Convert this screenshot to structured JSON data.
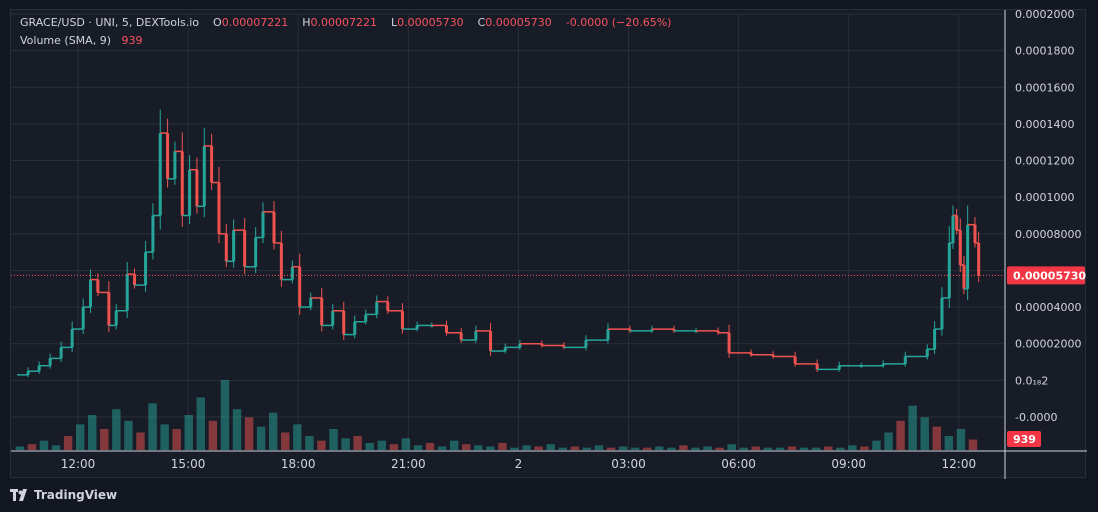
{
  "header": {
    "symbol": "GRACE/USD · UNI, 5, DEXTools.io",
    "o_label": "O",
    "o_value": "0.00007221",
    "h_label": "H",
    "h_value": "0.00007221",
    "l_label": "L",
    "l_value": "0.00005730",
    "c_label": "C",
    "c_value": "0.00005730",
    "change": "-0.0000 (−20.65%)",
    "volume_label": "Volume (SMA, 9)",
    "volume_value": "939"
  },
  "footer": {
    "brand": "TradingView"
  },
  "colors": {
    "up": "#26a69a",
    "down": "#ef5350",
    "background": "#181c27",
    "grid": "#2a2e39",
    "text": "#d1d4dc",
    "price_line": "#f7525f"
  },
  "chart_data": {
    "type": "candlestick",
    "price_tick_labels": [
      "0.0002000",
      "0.0001800",
      "0.0001600",
      "0.0001400",
      "0.0001200",
      "0.0001000",
      "0.00008000",
      "0.00006000",
      "0.00004000",
      "0.00002000",
      "0.0₁₈2",
      "-0.0000"
    ],
    "price_ticks": [
      0.0002,
      0.00018,
      0.00016,
      0.00014,
      0.00012,
      0.0001,
      8e-05,
      6e-05,
      4e-05,
      2e-05,
      0.0,
      -2e-05
    ],
    "ylim": [
      -2e-05,
      0.0002
    ],
    "time_labels": [
      "12:00",
      "15:00",
      "18:00",
      "21:00",
      "2",
      "03:00",
      "06:00",
      "09:00",
      "12:00"
    ],
    "time_hours": [
      12,
      15,
      18,
      21,
      24,
      27,
      30,
      33,
      36
    ],
    "last_price": 5.73e-05,
    "last_price_label": "0.00005730",
    "volume_label": "939",
    "series": [
      {
        "name": "price",
        "points": [
          [
            10.3,
            3e-06
          ],
          [
            10.6,
            5e-06
          ],
          [
            10.9,
            8e-06
          ],
          [
            11.2,
            1.2e-05
          ],
          [
            11.5,
            1.8e-05
          ],
          [
            11.8,
            2.8e-05
          ],
          [
            12.1,
            4e-05
          ],
          [
            12.3,
            5.5e-05
          ],
          [
            12.5,
            4.8e-05
          ],
          [
            12.8,
            3e-05
          ],
          [
            13.0,
            3.8e-05
          ],
          [
            13.3,
            5.8e-05
          ],
          [
            13.5,
            5.2e-05
          ],
          [
            13.8,
            7e-05
          ],
          [
            14.0,
            9e-05
          ],
          [
            14.2,
            0.000135
          ],
          [
            14.4,
            0.00011
          ],
          [
            14.6,
            0.000125
          ],
          [
            14.8,
            9e-05
          ],
          [
            15.0,
            0.000115
          ],
          [
            15.2,
            9.5e-05
          ],
          [
            15.4,
            0.000128
          ],
          [
            15.6,
            0.000108
          ],
          [
            15.8,
            8e-05
          ],
          [
            16.0,
            6.5e-05
          ],
          [
            16.2,
            8.2e-05
          ],
          [
            16.5,
            6.2e-05
          ],
          [
            16.8,
            7.8e-05
          ],
          [
            17.0,
            9.2e-05
          ],
          [
            17.3,
            7.5e-05
          ],
          [
            17.5,
            5.5e-05
          ],
          [
            17.8,
            6.2e-05
          ],
          [
            18.0,
            4e-05
          ],
          [
            18.3,
            4.5e-05
          ],
          [
            18.6,
            3e-05
          ],
          [
            18.9,
            3.8e-05
          ],
          [
            19.2,
            2.5e-05
          ],
          [
            19.5,
            3.2e-05
          ],
          [
            19.8,
            3.6e-05
          ],
          [
            20.1,
            4.3e-05
          ],
          [
            20.4,
            3.8e-05
          ],
          [
            20.8,
            2.8e-05
          ],
          [
            21.2,
            3e-05
          ],
          [
            21.6,
            3e-05
          ],
          [
            22.0,
            2.6e-05
          ],
          [
            22.4,
            2.2e-05
          ],
          [
            22.8,
            2.7e-05
          ],
          [
            23.2,
            1.6e-05
          ],
          [
            23.6,
            1.8e-05
          ],
          [
            24.0,
            2e-05
          ],
          [
            24.6,
            1.9e-05
          ],
          [
            25.2,
            1.8e-05
          ],
          [
            25.8,
            2.2e-05
          ],
          [
            26.4,
            2.8e-05
          ],
          [
            27.0,
            2.7e-05
          ],
          [
            27.6,
            2.8e-05
          ],
          [
            28.2,
            2.7e-05
          ],
          [
            28.8,
            2.7e-05
          ],
          [
            29.4,
            2.6e-05
          ],
          [
            29.7,
            1.5e-05
          ],
          [
            30.3,
            1.4e-05
          ],
          [
            30.9,
            1.3e-05
          ],
          [
            31.5,
            9e-06
          ],
          [
            32.1,
            6e-06
          ],
          [
            32.7,
            8e-06
          ],
          [
            33.3,
            8e-06
          ],
          [
            33.9,
            9e-06
          ],
          [
            34.5,
            1.3e-05
          ],
          [
            35.1,
            1.7e-05
          ],
          [
            35.3,
            2.8e-05
          ],
          [
            35.5,
            4.5e-05
          ],
          [
            35.7,
            7.5e-05
          ],
          [
            35.8,
            9e-05
          ],
          [
            35.9,
            8.2e-05
          ],
          [
            36.0,
            6.3e-05
          ],
          [
            36.1,
            5e-05
          ],
          [
            36.2,
            8.5e-05
          ],
          [
            36.4,
            7.5e-05
          ],
          [
            36.5,
            5.73e-05
          ]
        ]
      },
      {
        "name": "volume",
        "values": [
          3,
          5,
          8,
          4,
          12,
          22,
          30,
          18,
          35,
          25,
          15,
          40,
          22,
          18,
          30,
          45,
          25,
          60,
          35,
          28,
          20,
          32,
          15,
          22,
          12,
          8,
          18,
          10,
          12,
          6,
          8,
          5,
          10,
          4,
          6,
          3,
          8,
          5,
          4,
          3,
          6,
          2,
          4,
          3,
          5,
          2,
          3,
          2,
          4,
          2,
          3,
          2,
          2,
          3,
          2,
          4,
          2,
          3,
          2,
          5,
          2,
          3,
          2,
          2,
          3,
          2,
          2,
          3,
          2,
          4,
          3,
          8,
          15,
          25,
          38,
          28,
          20,
          12,
          18,
          9
        ]
      }
    ]
  }
}
